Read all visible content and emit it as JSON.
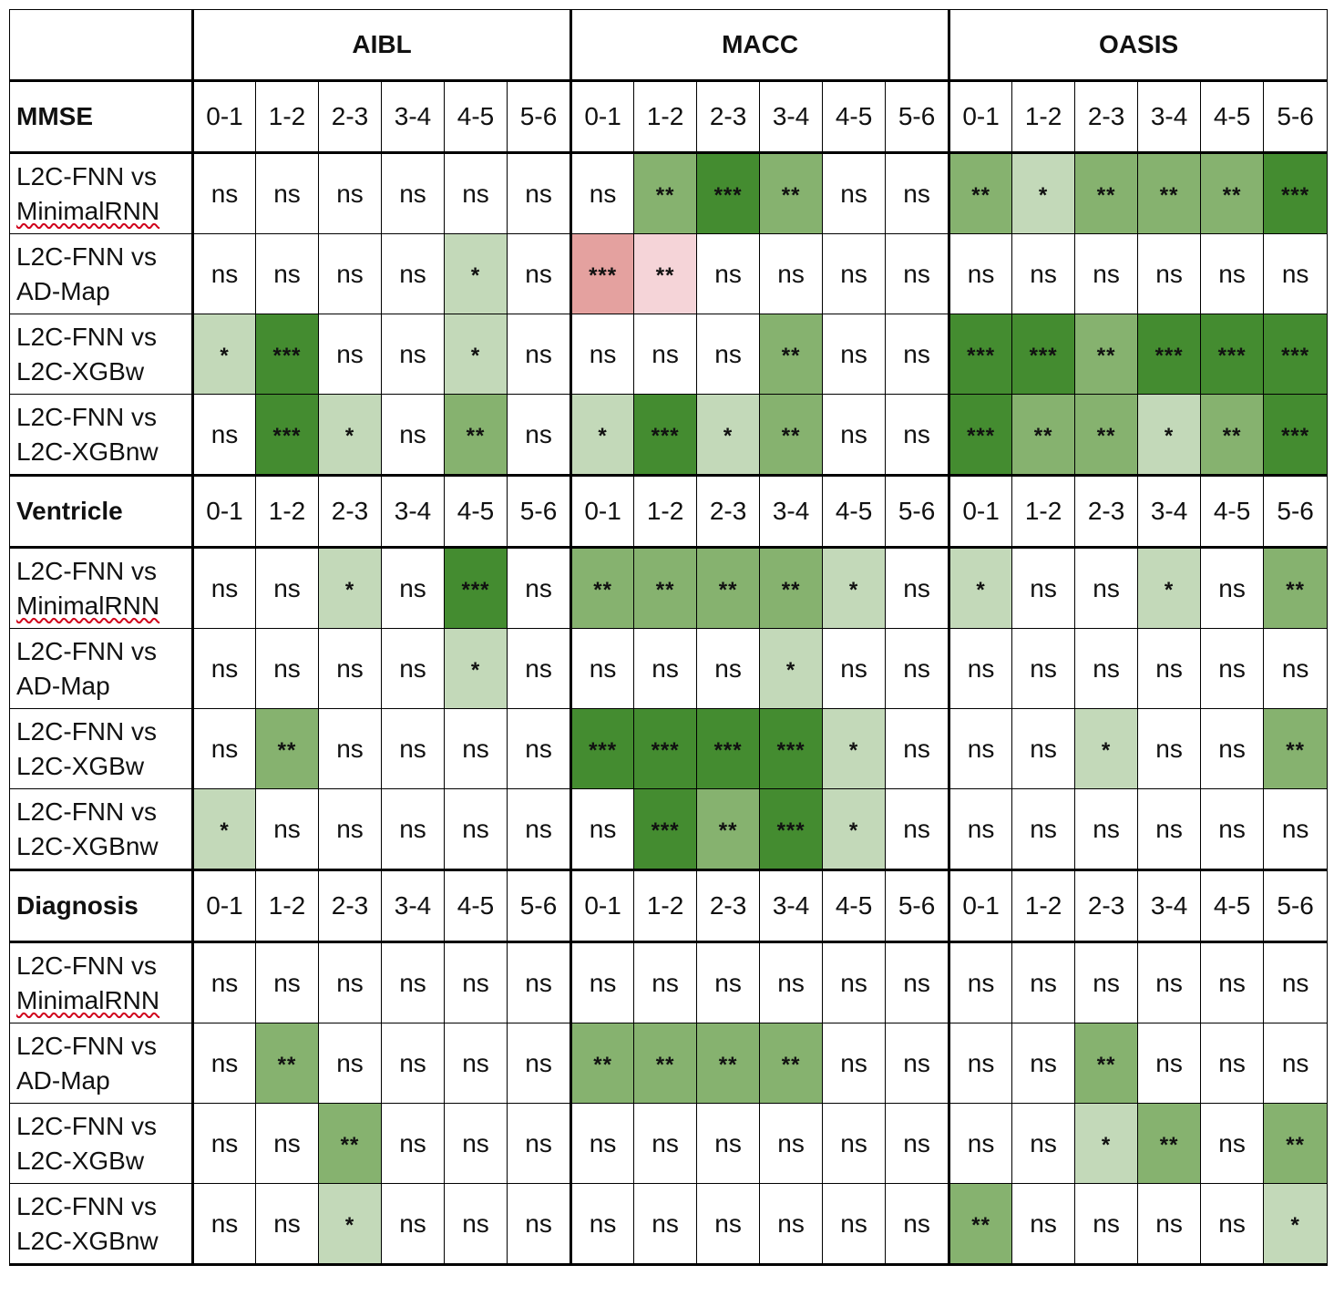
{
  "header": {
    "corner": "",
    "datasets": [
      "AIBL",
      "MACC",
      "OASIS"
    ]
  },
  "intervals": [
    "0-1",
    "1-2",
    "2-3",
    "3-4",
    "4-5",
    "5-6"
  ],
  "colors": {
    "ns": "#ffffff",
    "s1": "#c3d9b9",
    "s2": "#86b26f",
    "s3": "#448c30",
    "r2": "#f5d4d8",
    "r3": "#e4a19f"
  },
  "sections": [
    {
      "label": "MMSE",
      "rows": [
        {
          "model_line1": "L2C-FNN vs",
          "model_line2": "MinimalRNN",
          "squiggle": true,
          "values": [
            "ns",
            "ns",
            "ns",
            "ns",
            "ns",
            "ns",
            "ns",
            "**",
            "***",
            "**",
            "ns",
            "ns",
            "**",
            "*",
            "**",
            "**",
            "**",
            "***"
          ],
          "colors": [
            "ns",
            "ns",
            "ns",
            "ns",
            "ns",
            "ns",
            "ns",
            "s2",
            "s3",
            "s2",
            "ns",
            "ns",
            "s2",
            "s1",
            "s2",
            "s2",
            "s2",
            "s3"
          ]
        },
        {
          "model_line1": "L2C-FNN vs",
          "model_line2": "AD-Map",
          "squiggle": false,
          "values": [
            "ns",
            "ns",
            "ns",
            "ns",
            "*",
            "ns",
            "***",
            "**",
            "ns",
            "ns",
            "ns",
            "ns",
            "ns",
            "ns",
            "ns",
            "ns",
            "ns",
            "ns"
          ],
          "colors": [
            "ns",
            "ns",
            "ns",
            "ns",
            "s1",
            "ns",
            "r3",
            "r2",
            "ns",
            "ns",
            "ns",
            "ns",
            "ns",
            "ns",
            "ns",
            "ns",
            "ns",
            "ns"
          ]
        },
        {
          "model_line1": "L2C-FNN vs",
          "model_line2": "L2C-XGBw",
          "squiggle": false,
          "values": [
            "*",
            "***",
            "ns",
            "ns",
            "*",
            "ns",
            "ns",
            "ns",
            "ns",
            "**",
            "ns",
            "ns",
            "***",
            "***",
            "**",
            "***",
            "***",
            "***"
          ],
          "colors": [
            "s1",
            "s3",
            "ns",
            "ns",
            "s1",
            "ns",
            "ns",
            "ns",
            "ns",
            "s2",
            "ns",
            "ns",
            "s3",
            "s3",
            "s2",
            "s3",
            "s3",
            "s3"
          ]
        },
        {
          "model_line1": "L2C-FNN vs",
          "model_line2": "L2C-XGBnw",
          "squiggle": false,
          "values": [
            "ns",
            "***",
            "*",
            "ns",
            "**",
            "ns",
            "*",
            "***",
            "*",
            "**",
            "ns",
            "ns",
            "***",
            "**",
            "**",
            "*",
            "**",
            "***"
          ],
          "colors": [
            "ns",
            "s3",
            "s1",
            "ns",
            "s2",
            "ns",
            "s1",
            "s3",
            "s1",
            "s2",
            "ns",
            "ns",
            "s3",
            "s2",
            "s2",
            "s1",
            "s2",
            "s3"
          ]
        }
      ]
    },
    {
      "label": "Ventricle",
      "rows": [
        {
          "model_line1": "L2C-FNN vs",
          "model_line2": "MinimalRNN",
          "squiggle": true,
          "values": [
            "ns",
            "ns",
            "*",
            "ns",
            "***",
            "ns",
            "**",
            "**",
            "**",
            "**",
            "*",
            "ns",
            "*",
            "ns",
            "ns",
            "*",
            "ns",
            "**"
          ],
          "colors": [
            "ns",
            "ns",
            "s1",
            "ns",
            "s3",
            "ns",
            "s2",
            "s2",
            "s2",
            "s2",
            "s1",
            "ns",
            "s1",
            "ns",
            "ns",
            "s1",
            "ns",
            "s2"
          ]
        },
        {
          "model_line1": "L2C-FNN vs",
          "model_line2": "AD-Map",
          "squiggle": false,
          "values": [
            "ns",
            "ns",
            "ns",
            "ns",
            "*",
            "ns",
            "ns",
            "ns",
            "ns",
            "*",
            "ns",
            "ns",
            "ns",
            "ns",
            "ns",
            "ns",
            "ns",
            "ns"
          ],
          "colors": [
            "ns",
            "ns",
            "ns",
            "ns",
            "s1",
            "ns",
            "ns",
            "ns",
            "ns",
            "s1",
            "ns",
            "ns",
            "ns",
            "ns",
            "ns",
            "ns",
            "ns",
            "ns"
          ]
        },
        {
          "model_line1": "L2C-FNN vs",
          "model_line2": "L2C-XGBw",
          "squiggle": false,
          "values": [
            "ns",
            "**",
            "ns",
            "ns",
            "ns",
            "ns",
            "***",
            "***",
            "***",
            "***",
            "*",
            "ns",
            "ns",
            "ns",
            "*",
            "ns",
            "ns",
            "**"
          ],
          "colors": [
            "ns",
            "s2",
            "ns",
            "ns",
            "ns",
            "ns",
            "s3",
            "s3",
            "s3",
            "s3",
            "s1",
            "ns",
            "ns",
            "ns",
            "s1",
            "ns",
            "ns",
            "s2"
          ]
        },
        {
          "model_line1": "L2C-FNN vs",
          "model_line2": "L2C-XGBnw",
          "squiggle": false,
          "values": [
            "*",
            "ns",
            "ns",
            "ns",
            "ns",
            "ns",
            "ns",
            "***",
            "**",
            "***",
            "*",
            "ns",
            "ns",
            "ns",
            "ns",
            "ns",
            "ns",
            "ns"
          ],
          "colors": [
            "s1",
            "ns",
            "ns",
            "ns",
            "ns",
            "ns",
            "ns",
            "s3",
            "s2",
            "s3",
            "s1",
            "ns",
            "ns",
            "ns",
            "ns",
            "ns",
            "ns",
            "ns"
          ]
        }
      ]
    },
    {
      "label": "Diagnosis",
      "rows": [
        {
          "model_line1": "L2C-FNN vs",
          "model_line2": "MinimalRNN",
          "squiggle": true,
          "values": [
            "ns",
            "ns",
            "ns",
            "ns",
            "ns",
            "ns",
            "ns",
            "ns",
            "ns",
            "ns",
            "ns",
            "ns",
            "ns",
            "ns",
            "ns",
            "ns",
            "ns",
            "ns"
          ],
          "colors": [
            "ns",
            "ns",
            "ns",
            "ns",
            "ns",
            "ns",
            "ns",
            "ns",
            "ns",
            "ns",
            "ns",
            "ns",
            "ns",
            "ns",
            "ns",
            "ns",
            "ns",
            "ns"
          ]
        },
        {
          "model_line1": "L2C-FNN vs",
          "model_line2": "AD-Map",
          "squiggle": false,
          "values": [
            "ns",
            "**",
            "ns",
            "ns",
            "ns",
            "ns",
            "**",
            "**",
            "**",
            "**",
            "ns",
            "ns",
            "ns",
            "ns",
            "**",
            "ns",
            "ns",
            "ns"
          ],
          "colors": [
            "ns",
            "s2",
            "ns",
            "ns",
            "ns",
            "ns",
            "s2",
            "s2",
            "s2",
            "s2",
            "ns",
            "ns",
            "ns",
            "ns",
            "s2",
            "ns",
            "ns",
            "ns"
          ]
        },
        {
          "model_line1": "L2C-FNN vs",
          "model_line2": "L2C-XGBw",
          "squiggle": false,
          "values": [
            "ns",
            "ns",
            "**",
            "ns",
            "ns",
            "ns",
            "ns",
            "ns",
            "ns",
            "ns",
            "ns",
            "ns",
            "ns",
            "ns",
            "*",
            "**",
            "ns",
            "**"
          ],
          "colors": [
            "ns",
            "ns",
            "s2",
            "ns",
            "ns",
            "ns",
            "ns",
            "ns",
            "ns",
            "ns",
            "ns",
            "ns",
            "ns",
            "ns",
            "s1",
            "s2",
            "ns",
            "s2"
          ]
        },
        {
          "model_line1": "L2C-FNN vs",
          "model_line2": "L2C-XGBnw",
          "squiggle": false,
          "values": [
            "ns",
            "ns",
            "*",
            "ns",
            "ns",
            "ns",
            "ns",
            "ns",
            "ns",
            "ns",
            "ns",
            "ns",
            "**",
            "ns",
            "ns",
            "ns",
            "ns",
            "*"
          ],
          "colors": [
            "ns",
            "ns",
            "s1",
            "ns",
            "ns",
            "ns",
            "ns",
            "ns",
            "ns",
            "ns",
            "ns",
            "ns",
            "s2",
            "ns",
            "ns",
            "ns",
            "ns",
            "s1"
          ]
        }
      ]
    }
  ]
}
